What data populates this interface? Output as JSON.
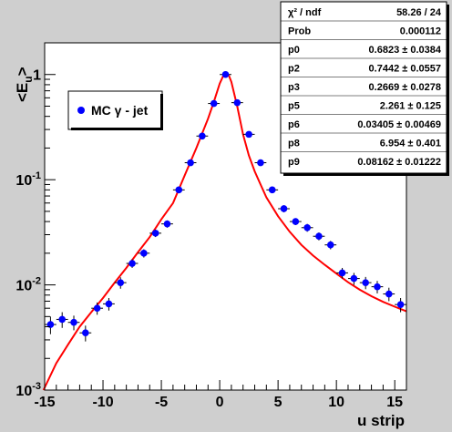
{
  "chart_data": {
    "type": "scatter",
    "title": "",
    "xlabel": "u strip",
    "ylabel": "<E_u>",
    "ylabel_main": "<E",
    "ylabel_sub": "u",
    "ylabel_close": ">",
    "xlim": [
      -15,
      16
    ],
    "ylim": [
      0.001,
      2
    ],
    "yscale": "log",
    "x_ticks": [
      -15,
      -10,
      -5,
      0,
      5,
      10,
      15
    ],
    "x_tick_labels": [
      "-15",
      "-10",
      "-5",
      "0",
      "5",
      "10",
      "15"
    ],
    "y_ticks": [
      {
        "value": 1,
        "base": "1",
        "exp": ""
      },
      {
        "value": 0.1,
        "base": "10",
        "exp": "-1"
      },
      {
        "value": 0.01,
        "base": "10",
        "exp": "-2"
      },
      {
        "value": 0.001,
        "base": "10",
        "exp": "-3"
      }
    ],
    "grid": false,
    "legend_position": "upper-left",
    "series": [
      {
        "name": "MC γ - jet",
        "color": "#0000ff",
        "x": [
          -14.5,
          -13.5,
          -12.5,
          -11.5,
          -10.5,
          -9.5,
          -8.5,
          -7.5,
          -6.5,
          -5.5,
          -4.5,
          -3.5,
          -2.5,
          -1.5,
          -0.5,
          0.5,
          1.5,
          2.5,
          3.5,
          4.5,
          5.5,
          6.5,
          7.5,
          8.5,
          9.5,
          10.5,
          11.5,
          12.5,
          13.5,
          14.5,
          15.5
        ],
        "y": [
          0.0042,
          0.0047,
          0.0044,
          0.0035,
          0.006,
          0.0066,
          0.0105,
          0.016,
          0.02,
          0.031,
          0.038,
          0.08,
          0.145,
          0.26,
          0.53,
          1.0,
          0.54,
          0.27,
          0.145,
          0.08,
          0.053,
          0.04,
          0.035,
          0.029,
          0.024,
          0.013,
          0.0115,
          0.0105,
          0.0096,
          0.0082,
          0.0065
        ],
        "yerr": [
          0.0008,
          0.0008,
          0.0007,
          0.0006,
          0.0008,
          0.0009,
          0.0013,
          0.0015,
          0.0018,
          0.0025,
          0.003,
          0.005,
          0.008,
          0.012,
          0.02,
          0.03,
          0.02,
          0.012,
          0.008,
          0.005,
          0.004,
          0.003,
          0.003,
          0.0025,
          0.0022,
          0.0015,
          0.0015,
          0.0014,
          0.0013,
          0.0012,
          0.001
        ]
      }
    ],
    "fit_color": "#ff0000",
    "fit_curve_x": [
      -15.1,
      -14,
      -13,
      -12,
      -11,
      -10,
      -9,
      -8,
      -7,
      -6,
      -5,
      -4,
      -3,
      -2,
      -1,
      -0.5,
      0,
      0.3,
      0.5,
      0.8,
      1,
      1.5,
      2,
      2.5,
      3,
      3.5,
      4,
      5,
      6,
      7,
      8,
      9,
      10,
      11,
      12,
      13,
      14,
      15,
      16
    ],
    "fit_curve_y": [
      0.001,
      0.0018,
      0.0027,
      0.004,
      0.0055,
      0.0075,
      0.0105,
      0.0145,
      0.0205,
      0.0285,
      0.042,
      0.06,
      0.11,
      0.2,
      0.38,
      0.55,
      0.82,
      0.97,
      1.0,
      0.97,
      0.85,
      0.5,
      0.27,
      0.17,
      0.12,
      0.09,
      0.068,
      0.045,
      0.032,
      0.024,
      0.019,
      0.0155,
      0.0128,
      0.0106,
      0.009,
      0.0078,
      0.0069,
      0.0062,
      0.0056
    ]
  },
  "stats": {
    "rows": [
      {
        "label": "χ² / ndf",
        "value": "58.26 / 24"
      },
      {
        "label": "Prob",
        "value": "0.000112"
      },
      {
        "label": "p0",
        "value": "0.6823 ± 0.0384"
      },
      {
        "label": "p2",
        "value": "0.7442 ± 0.0557"
      },
      {
        "label": "p3",
        "value": "0.2669 ± 0.0278"
      },
      {
        "label": "p5",
        "value": "2.261 ± 0.125"
      },
      {
        "label": "p6",
        "value": "0.03405 ± 0.00469"
      },
      {
        "label": "p8",
        "value": "6.954 ± 0.401"
      },
      {
        "label": "p9",
        "value": "0.08162 ± 0.01222"
      }
    ]
  },
  "legend": {
    "label": "MC γ - jet"
  }
}
